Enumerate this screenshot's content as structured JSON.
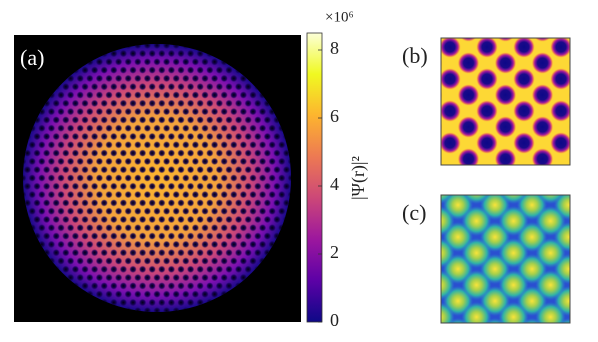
{
  "chart_data": {
    "type": "heatmap",
    "panels": [
      {
        "label": "(a)"
      },
      {
        "label": "(b)"
      },
      {
        "label": "(c)"
      }
    ],
    "colorbar": {
      "label": "|Ψ(r)|²",
      "multiplier": "×10⁶",
      "clim": [
        0,
        8.5
      ],
      "ticks": [
        0,
        2,
        4,
        6,
        8
      ]
    },
    "colormap": [
      "#0d0887",
      "#5c01a6",
      "#9c179e",
      "#cc4778",
      "#ed7953",
      "#fdb42f",
      "#f0f921",
      "#fcffd8"
    ]
  }
}
